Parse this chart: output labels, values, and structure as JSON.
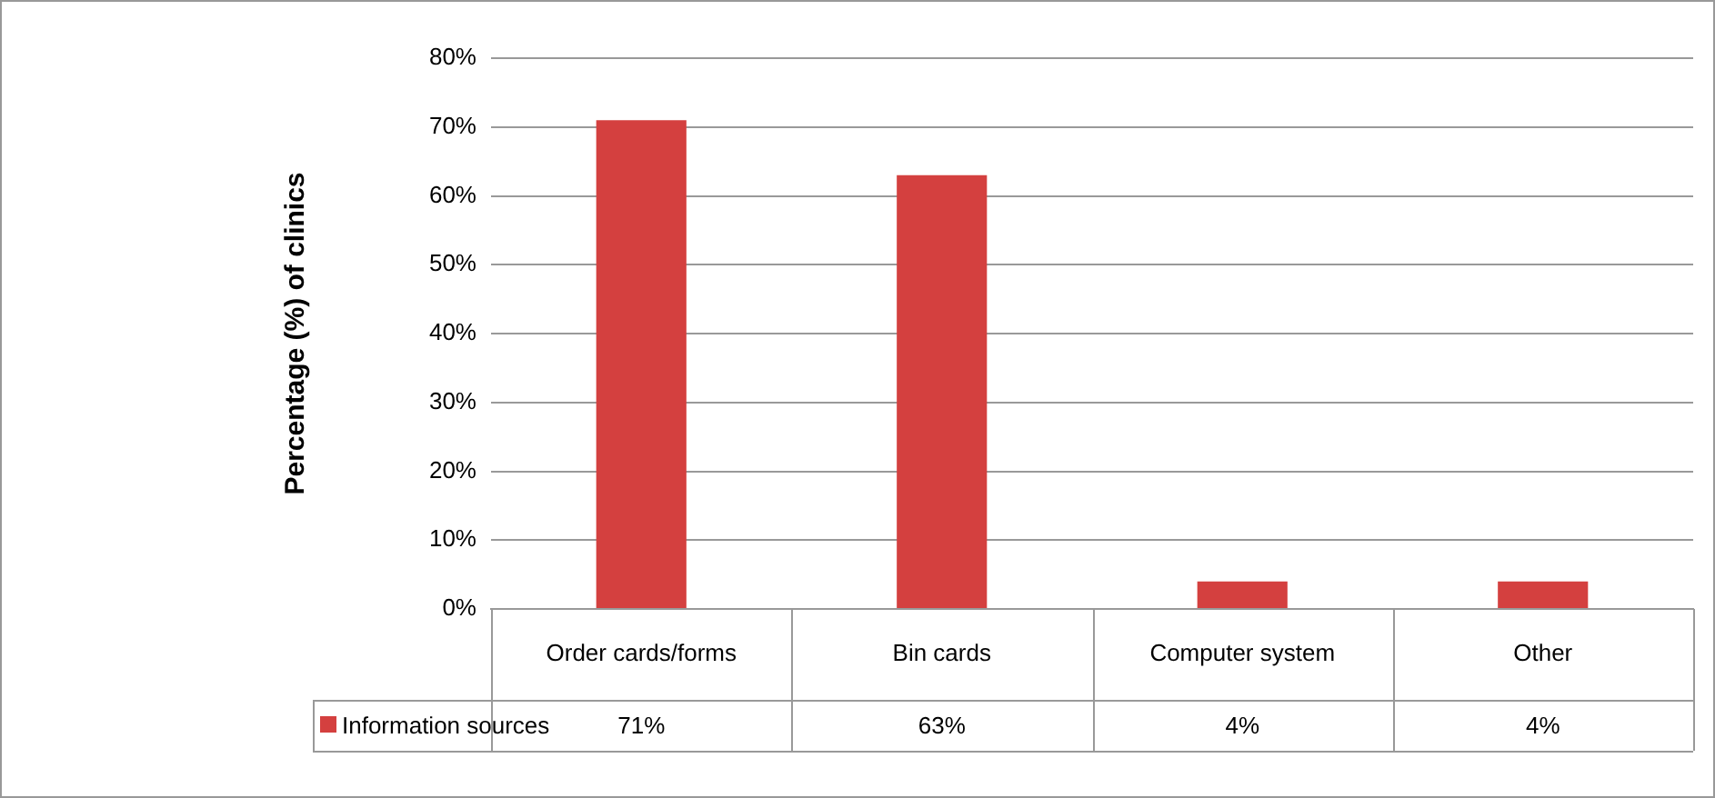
{
  "chart_data": {
    "type": "bar",
    "ylabel": "Percentage (%) of clinics",
    "categories": [
      "Order cards/forms",
      "Bin cards",
      "Computer system",
      "Other"
    ],
    "series": [
      {
        "name": "Information sources",
        "color": "#d4403f",
        "values": [
          71,
          63,
          4,
          4
        ],
        "value_labels": [
          "71%",
          "63%",
          "4%",
          "4%"
        ]
      }
    ],
    "ylim": [
      0,
      80
    ],
    "yticks": [
      {
        "value": 0,
        "label": "0%"
      },
      {
        "value": 10,
        "label": "10%"
      },
      {
        "value": 20,
        "label": "20%"
      },
      {
        "value": 30,
        "label": "30%"
      },
      {
        "value": 40,
        "label": "40%"
      },
      {
        "value": 50,
        "label": "50%"
      },
      {
        "value": 60,
        "label": "60%"
      },
      {
        "value": 70,
        "label": "70%"
      },
      {
        "value": 80,
        "label": "80%"
      }
    ],
    "grid": "y",
    "legend": "bottom"
  }
}
